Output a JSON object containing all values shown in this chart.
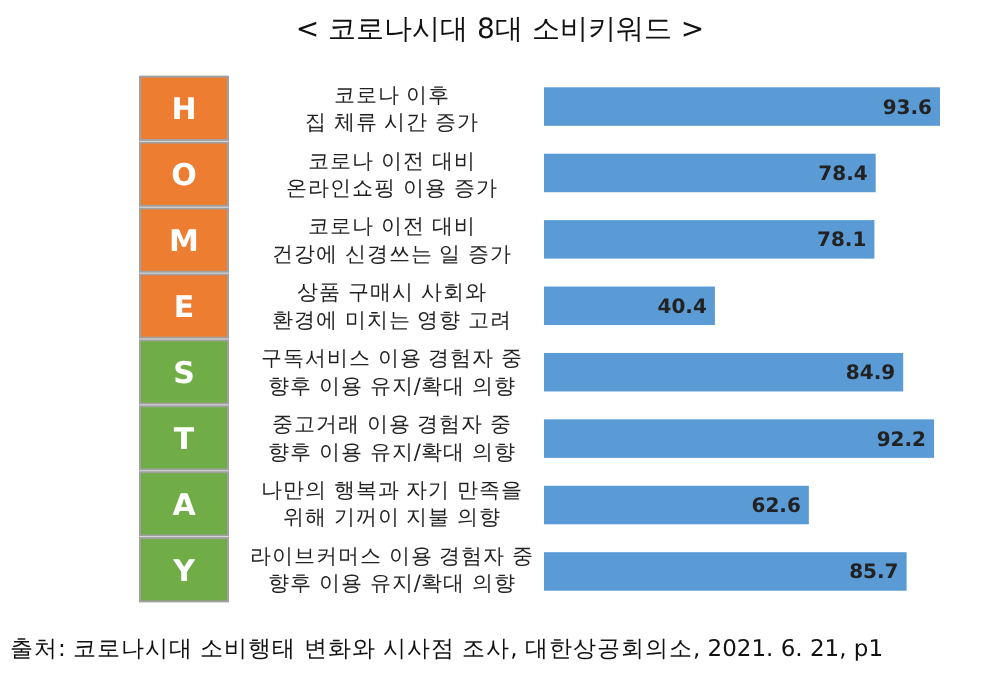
{
  "chart_data": {
    "type": "bar",
    "orientation": "horizontal",
    "title": "< 코로나시대  8대 소비키워드 >",
    "categories": [
      "코로나 이후\n집 체류 시간 증가",
      "코로나 이전 대비\n온라인쇼핑 이용 증가",
      "코로나 이전 대비\n건강에 신경쓰는 일 증가",
      "상품 구매시 사회와\n환경에 미치는 영향 고려",
      "구독서비스 이용 경험자 중\n향후 이용 유지/확대 의향",
      "중고거래 이용 경험자 중\n향후 이용 유지/확대 의향",
      "나만의 행복과 자기 만족을\n위해 기꺼이 지불 의향",
      "라이브커머스 이용 경험자 중\n향후 이용 유지/확대 의향"
    ],
    "values": [
      93.6,
      78.4,
      78.1,
      40.4,
      84.9,
      92.2,
      62.6,
      85.7
    ],
    "color": "#5b9bd5",
    "data_labels": true,
    "annotations": [
      "H",
      "O",
      "M",
      "E",
      "S",
      "T",
      "A",
      "Y",
      "출처: 코로나시대 소비행태 변화와 시사점 조사, 대한상공회의소, 2021. 6. 21, p1"
    ]
  }
}
